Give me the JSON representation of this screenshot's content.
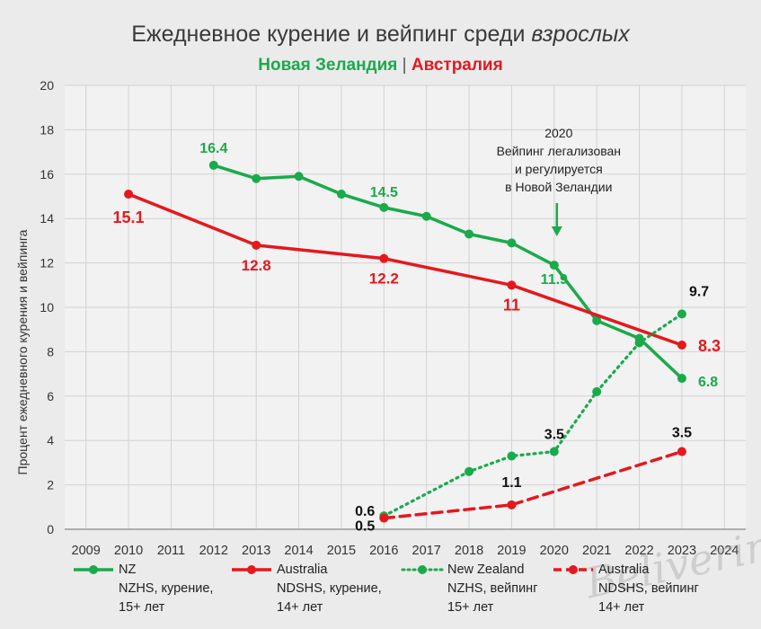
{
  "header": {
    "title_main": "Ежедневное курение и вейпинг среди ",
    "title_italic": "взрослых",
    "subtitle_nz": "Новая Зеландия",
    "subtitle_sep": " | ",
    "subtitle_au": "Австралия"
  },
  "annotation": {
    "lines": [
      "2020",
      "Вейпинг легализован",
      "и регулируется",
      "в Новой Зеландии"
    ]
  },
  "watermark": "Belivering",
  "chart_data": {
    "type": "line",
    "ylabel": "Процент ежедневного курения и вейпинга",
    "xlabel": "",
    "ylim": [
      0,
      20
    ],
    "yticks": [
      0,
      2,
      4,
      6,
      8,
      10,
      12,
      14,
      16,
      18,
      20
    ],
    "xlim": [
      2008.5,
      2024.5
    ],
    "xticks": [
      2009,
      2010,
      2011,
      2012,
      2013,
      2014,
      2015,
      2016,
      2017,
      2018,
      2019,
      2020,
      2021,
      2022,
      2023,
      2024
    ],
    "grid": true,
    "legend": "bottom",
    "series": [
      {
        "id": "nz_smoking",
        "name": "NZ",
        "desc1": "NZHS, курение,",
        "desc2": "15+ лет",
        "color": "#1aaa4b",
        "style": "solid",
        "points": [
          [
            2012,
            16.4
          ],
          [
            2013,
            15.8
          ],
          [
            2014,
            15.9
          ],
          [
            2015,
            15.1
          ],
          [
            2016,
            14.5
          ],
          [
            2017,
            14.1
          ],
          [
            2018,
            13.3
          ],
          [
            2019,
            12.9
          ],
          [
            2020,
            11.9
          ],
          [
            2021,
            9.4
          ],
          [
            2022,
            8.6
          ],
          [
            2023,
            6.8
          ]
        ],
        "labels": [
          {
            "x": 2012,
            "y": 16.4,
            "text": "16.4"
          },
          {
            "x": 2016,
            "y": 14.5,
            "text": "14.5"
          },
          {
            "x": 2020,
            "y": 11.9,
            "text": "11.9"
          },
          {
            "x": 2023,
            "y": 6.8,
            "text": "6.8"
          }
        ]
      },
      {
        "id": "au_smoking",
        "name": "Australia",
        "desc1": "NDSHS, курение,",
        "desc2": "14+ лет",
        "color": "#e5181e",
        "style": "solid",
        "points": [
          [
            2010,
            15.1
          ],
          [
            2013,
            12.8
          ],
          [
            2016,
            12.2
          ],
          [
            2019,
            11.0
          ],
          [
            2023,
            8.3
          ]
        ],
        "labels": [
          {
            "x": 2010,
            "y": 15.1,
            "text": "15.1"
          },
          {
            "x": 2013,
            "y": 12.8,
            "text": "12.8"
          },
          {
            "x": 2016,
            "y": 12.2,
            "text": "12.2"
          },
          {
            "x": 2019,
            "y": 11.0,
            "text": "11"
          },
          {
            "x": 2023,
            "y": 8.3,
            "text": "8.3"
          }
        ]
      },
      {
        "id": "nz_vaping",
        "name": "New Zealand",
        "desc1": "NZHS, вейпинг",
        "desc2": "15+ лет",
        "color": "#1aaa4b",
        "style": "dotted",
        "points": [
          [
            2016,
            0.6
          ],
          [
            2018,
            2.6
          ],
          [
            2019,
            3.3
          ],
          [
            2020,
            3.5
          ],
          [
            2021,
            6.2
          ],
          [
            2022,
            8.4
          ],
          [
            2023,
            9.7
          ]
        ],
        "labels": [
          {
            "x": 2016,
            "y": 0.6,
            "text": "0.6"
          },
          {
            "x": 2020,
            "y": 3.5,
            "text": "3.5"
          },
          {
            "x": 2023,
            "y": 9.7,
            "text": "9.7"
          }
        ]
      },
      {
        "id": "au_vaping",
        "name": "Australia",
        "desc1": "NDSHS, вейпинг",
        "desc2": "14+ лет",
        "color": "#e5181e",
        "style": "dashed",
        "points": [
          [
            2016,
            0.5
          ],
          [
            2019,
            1.1
          ],
          [
            2023,
            3.5
          ]
        ],
        "labels": [
          {
            "x": 2016,
            "y": 0.5,
            "text": "0.5"
          },
          {
            "x": 2019,
            "y": 1.1,
            "text": "1.1"
          },
          {
            "x": 2023,
            "y": 3.5,
            "text": "3.5"
          }
        ]
      }
    ]
  }
}
